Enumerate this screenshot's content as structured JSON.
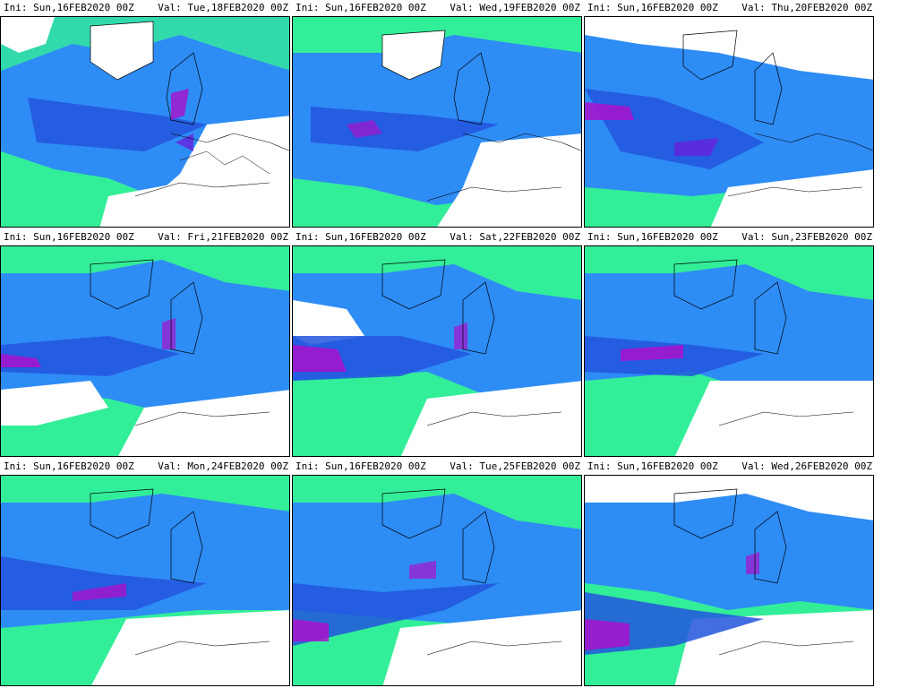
{
  "panels": [
    {
      "ini": "Ini: Sun,16FEB2020 00Z",
      "val": "Val: Tue,18FEB2020 00Z"
    },
    {
      "ini": "Ini: Sun,16FEB2020 00Z",
      "val": "Val: Wed,19FEB2020 00Z"
    },
    {
      "ini": "Ini: Sun,16FEB2020 00Z",
      "val": "Val: Thu,20FEB2020 00Z"
    },
    {
      "ini": "Ini: Sun,16FEB2020 00Z",
      "val": "Val: Fri,21FEB2020 00Z"
    },
    {
      "ini": "Ini: Sun,16FEB2020 00Z",
      "val": "Val: Sat,22FEB2020 00Z"
    },
    {
      "ini": "Ini: Sun,16FEB2020 00Z",
      "val": "Val: Sun,23FEB2020 00Z"
    },
    {
      "ini": "Ini: Sun,16FEB2020 00Z",
      "val": "Val: Mon,24FEB2020 00Z"
    },
    {
      "ini": "Ini: Sun,16FEB2020 00Z",
      "val": "Val: Tue,25FEB2020 00Z"
    },
    {
      "ini": "Ini: Sun,16FEB2020 00Z",
      "val": "Val: Wed,26FEB2020 00Z"
    }
  ],
  "colors": {
    "low": "#33ee99",
    "mid_light": "#33aaff",
    "mid": "#2266ee",
    "high": "#3322cc",
    "peak": "#aa11cc",
    "coast": "#000000"
  }
}
